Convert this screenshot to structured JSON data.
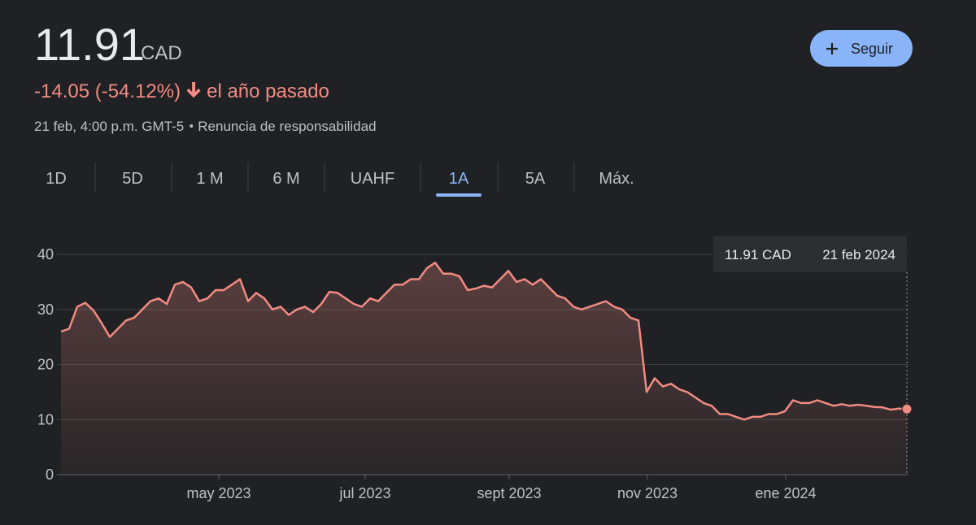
{
  "header": {
    "price": "11.91",
    "currency": "CAD",
    "change": "-14.05 (-54.12%)",
    "period": "el año pasado",
    "timestamp": "21 feb, 4:00 p.m. GMT-5",
    "disclaimer": "Renuncia de responsabilidad",
    "follow": "Seguir"
  },
  "tabs": [
    "1D",
    "5D",
    "1 M",
    "6 M",
    "UAHF",
    "1A",
    "5A",
    "Máx."
  ],
  "active_tab": 5,
  "chart_data": {
    "type": "line",
    "color": "#f28b82",
    "values": [
      26,
      26.5,
      30.5,
      31.2,
      29.8,
      27.5,
      25,
      26.5,
      28,
      28.5,
      30,
      31.5,
      32,
      31,
      34.5,
      35,
      34,
      31.5,
      32,
      33.5,
      33.5,
      34.5,
      35.5,
      31.5,
      33,
      32,
      30,
      30.5,
      29,
      30,
      30.5,
      29.5,
      31,
      33.2,
      33,
      32,
      31,
      30.5,
      32,
      31.5,
      33,
      34.5,
      34.5,
      35.5,
      35.5,
      37.5,
      38.5,
      36.5,
      36.5,
      36,
      33.5,
      33.8,
      34.3,
      34,
      35.5,
      37,
      35,
      35.5,
      34.5,
      35.5,
      34,
      32.5,
      32,
      30.5,
      30,
      30.5,
      31,
      31.5,
      30.5,
      30,
      28.5,
      28,
      15,
      17.5,
      16,
      16.5,
      15.5,
      15,
      14,
      13,
      12.5,
      11,
      11,
      10.5,
      10,
      10.5,
      10.5,
      11,
      11,
      11.5,
      13.5,
      13,
      13,
      13.5,
      13,
      12.5,
      12.8,
      12.5,
      12.7,
      12.5,
      12.3,
      12.2,
      11.8,
      12,
      11.91
    ],
    "ylim": [
      0,
      40
    ],
    "yticks": [
      0,
      10,
      20,
      30,
      40
    ],
    "xticks": [
      {
        "value": 19.4,
        "label": "may 2023"
      },
      {
        "value": 37.4,
        "label": "jul 2023"
      },
      {
        "value": 55.1,
        "label": "sept 2023"
      },
      {
        "value": 72.1,
        "label": "nov 2023"
      },
      {
        "value": 89.1,
        "label": "ene 2024"
      }
    ],
    "grid": true,
    "tooltip": {
      "price": "11.91 CAD",
      "date": "21 feb 2024"
    }
  }
}
